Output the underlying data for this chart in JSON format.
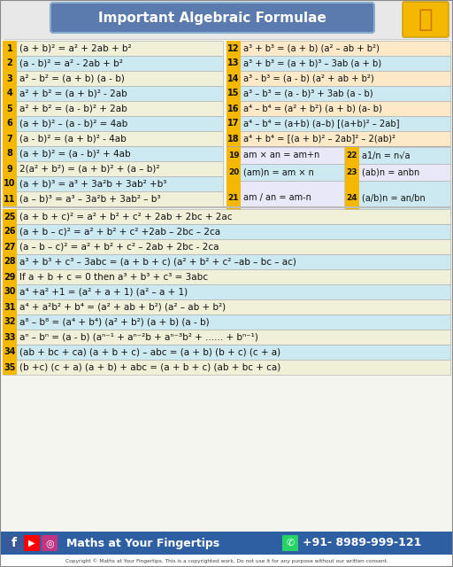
{
  "title": "Important Algebraic Formulae",
  "title_bg": "#5b7aad",
  "title_color": "#ffffff",
  "bg_color": "#f0eeee",
  "footer_bg": "#2e5fa3",
  "footer_text": "Maths at Your Fingertips",
  "footer_phone": "+91- 8989-999-121",
  "copyright": "Copyright © Maths at Your Fingertips. This is a copyrighted work. Do not use it for any purpose without our written consent.",
  "col1_rows": [
    {
      "n": "1",
      "text": "(a + b)² = a² + 2ab + b²"
    },
    {
      "n": "2",
      "text": "(a - b)² = a² - 2ab + b²"
    },
    {
      "n": "3",
      "text": "a² – b² = (a + b) (a - b)"
    },
    {
      "n": "4",
      "text": "a² + b² = (a + b)² - 2ab"
    },
    {
      "n": "5",
      "text": "a² + b² = (a - b)² + 2ab"
    },
    {
      "n": "6",
      "text": "(a + b)² – (a - b)² = 4ab"
    },
    {
      "n": "7",
      "text": "(a - b)² = (a + b)² - 4ab"
    },
    {
      "n": "8",
      "text": "(a + b)² = (a - b)² + 4ab"
    },
    {
      "n": "9",
      "text": "2(a² + b²) = (a + b)² + (a – b)²"
    },
    {
      "n": "10",
      "text": "(a + b)³ = a³ + 3a²b + 3ab² +b³"
    },
    {
      "n": "11",
      "text": "(a – b)³ = a³ – 3a²b + 3ab² – b³"
    }
  ],
  "col2_rows_a": [
    {
      "n": "12",
      "text": "a³ + b³ = (a + b) (a² – ab + b²)"
    },
    {
      "n": "13",
      "text": "a³ + b³ = (a + b)³ – 3ab (a + b)"
    },
    {
      "n": "14",
      "text": "a³ - b³ = (a - b) (a² + ab + b²)"
    },
    {
      "n": "15",
      "text": "a³ – b³ = (a - b)³ + 3ab (a - b)"
    },
    {
      "n": "16",
      "text": "a⁴ – b⁴ = (a² + b²) (a + b) (a- b)"
    },
    {
      "n": "17",
      "text": "a⁴ – b⁴ = (a+b) (a–b) [(a+b)² – 2ab]"
    },
    {
      "n": "18",
      "text": "a⁴ + b⁴ = [(a + b)² – 2ab]² – 2(ab)²"
    }
  ],
  "mid_left": [
    {
      "n": "19",
      "text": "am × an = am+n"
    },
    {
      "n": "20",
      "text": "(am)n = am × n"
    },
    {
      "n": "21",
      "text": "am / an = am-n"
    }
  ],
  "mid_right": [
    {
      "n": "22",
      "text": "a1/n = n√a"
    },
    {
      "n": "23",
      "text": "(ab)n = anbn"
    },
    {
      "n": "24",
      "text": "(a/b)n = an/bn"
    }
  ],
  "bottom_rows": [
    {
      "n": "25",
      "text": "(a + b + c)² = a² + b² + c² + 2ab + 2bc + 2ac"
    },
    {
      "n": "26",
      "text": "(a + b – c)² = a² + b² + c² +2ab – 2bc – 2ca"
    },
    {
      "n": "27",
      "text": "(a – b – c)² = a² + b² + c² – 2ab + 2bc - 2ca"
    },
    {
      "n": "28",
      "text": "a³ + b³ + c³ – 3abc = (a + b + c) (a² + b² + c² –ab – bc – ac)"
    },
    {
      "n": "29",
      "text": "If a + b + c = 0 then a³ + b³ + c³ = 3abc"
    },
    {
      "n": "30",
      "text": "a⁴ +a² +1 = (a² + a + 1) (a² – a + 1)"
    },
    {
      "n": "31",
      "text": "a⁴ + a²b² + b⁴ = (a² + ab + b²) (a² – ab + b²)"
    },
    {
      "n": "32",
      "text": "a⁸ – b⁸ = (a⁴ + b⁴) (a² + b²) (a + b) (a - b)"
    },
    {
      "n": "33",
      "text": "aⁿ – bⁿ = (a - b) (aⁿ⁻¹ + aⁿ⁻²b + aⁿ⁻³b² + ...... + bⁿ⁻¹)"
    },
    {
      "n": "34",
      "text": "(ab + bc + ca) (a + b + c) – abc = (a + b) (b + c) (c + a)"
    },
    {
      "n": "35",
      "text": "(b +c) (c + a) (a + b) + abc = (a + b + c) (ab + bc + ca)"
    }
  ],
  "alt_colors_1": [
    "#f0f0d8",
    "#cce8f0"
  ],
  "alt_colors_2": [
    "#fde8c8",
    "#cce8f0"
  ],
  "alt_colors_mid": [
    "#e8e8f8",
    "#cce8f0"
  ],
  "alt_colors_bot": [
    "#f0f0d8",
    "#cce8f0"
  ],
  "num_bg": "#f5b800",
  "num_color": "#111111",
  "text_color": "#111111",
  "font_size": 7.5,
  "num_font_size": 7.0
}
